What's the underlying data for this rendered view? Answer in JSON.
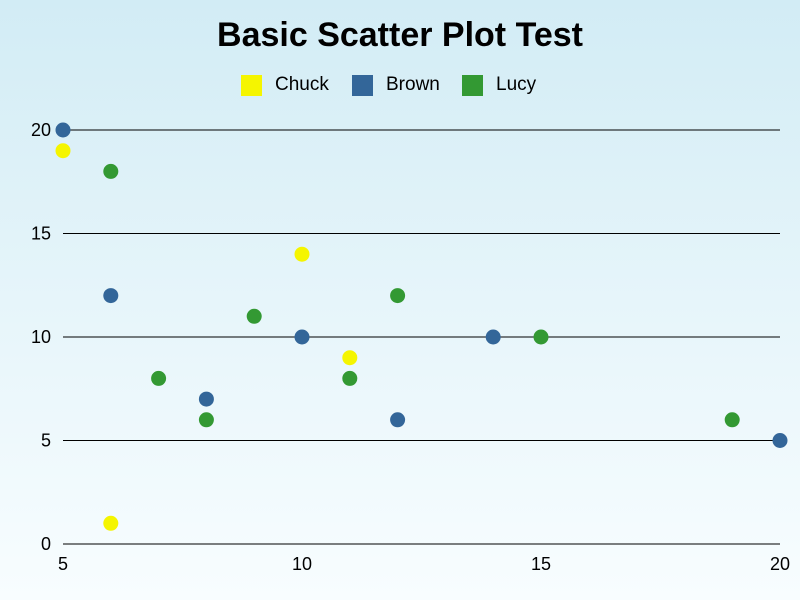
{
  "chart_data": {
    "type": "scatter",
    "title": "Basic Scatter Plot Test",
    "xlabel": "",
    "ylabel": "",
    "xlim": [
      5,
      20
    ],
    "ylim": [
      0,
      20
    ],
    "x_ticks": [
      5,
      10,
      15,
      20
    ],
    "y_ticks": [
      0,
      5,
      10,
      15,
      20
    ],
    "grid": "horizontal",
    "legend_position": "top-center",
    "series": [
      {
        "name": "Chuck",
        "color": "#f5f500",
        "points": [
          [
            5,
            19
          ],
          [
            6,
            1
          ],
          [
            10,
            14
          ],
          [
            11,
            9
          ]
        ]
      },
      {
        "name": "Brown",
        "color": "#336699",
        "points": [
          [
            5,
            20
          ],
          [
            6,
            12
          ],
          [
            8,
            7
          ],
          [
            10,
            10
          ],
          [
            12,
            6
          ],
          [
            14,
            10
          ],
          [
            20,
            5
          ]
        ]
      },
      {
        "name": "Lucy",
        "color": "#339933",
        "points": [
          [
            6,
            18
          ],
          [
            7,
            8
          ],
          [
            8,
            6
          ],
          [
            9,
            11
          ],
          [
            11,
            8
          ],
          [
            12,
            12
          ],
          [
            15,
            10
          ],
          [
            19,
            6
          ]
        ]
      }
    ]
  }
}
